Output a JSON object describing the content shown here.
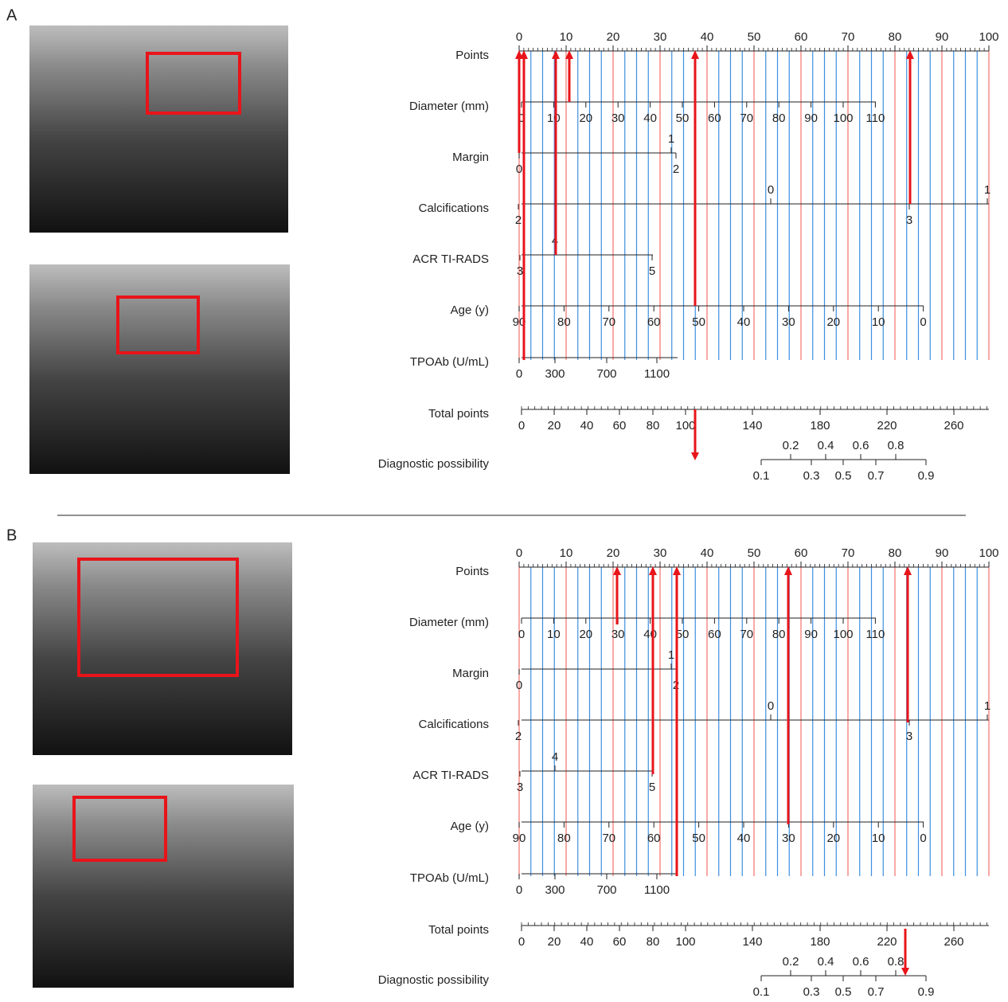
{
  "panels": [
    {
      "label": "A",
      "rows": [
        {
          "name": "Points",
          "above": [
            0,
            10,
            20,
            30,
            40,
            50,
            60,
            70,
            80,
            90,
            100
          ],
          "below": []
        },
        {
          "name": "Diameter (mm)",
          "above": [],
          "below": [
            0,
            10,
            20,
            30,
            40,
            50,
            60,
            70,
            80,
            90,
            100,
            110
          ]
        },
        {
          "name": "Margin",
          "above": [
            1
          ],
          "below": [
            0,
            2
          ]
        },
        {
          "name": "Calcifications",
          "above": [
            0,
            1
          ],
          "below": [
            2,
            3
          ]
        },
        {
          "name": "ACR TI-RADS",
          "above": [
            4
          ],
          "below": [
            3,
            5
          ]
        },
        {
          "name": "Age (y)",
          "above": [],
          "below": [
            90,
            80,
            70,
            60,
            50,
            40,
            30,
            20,
            10,
            0
          ]
        },
        {
          "name": "TPOAb (U/mL)",
          "above": [],
          "below": [
            0,
            300,
            700,
            1100
          ]
        },
        {
          "name": "Total points",
          "above": [],
          "below": [
            0,
            20,
            40,
            60,
            80,
            100,
            140,
            180,
            220,
            260
          ]
        },
        {
          "name": "Diagnostic possibility",
          "above": [
            0.2,
            0.4,
            0.6,
            0.8
          ],
          "below": [
            0.1,
            0.3,
            0.5,
            0.7,
            0.9
          ]
        }
      ]
    },
    {
      "label": "B",
      "rows": [
        {
          "name": "Points",
          "above": [
            0,
            10,
            20,
            30,
            40,
            50,
            60,
            70,
            80,
            90,
            100
          ],
          "below": []
        },
        {
          "name": "Diameter (mm)",
          "above": [],
          "below": [
            0,
            10,
            20,
            30,
            40,
            50,
            60,
            70,
            80,
            90,
            100,
            110
          ]
        },
        {
          "name": "Margin",
          "above": [
            1
          ],
          "below": [
            0,
            2
          ]
        },
        {
          "name": "Calcifications",
          "above": [
            0,
            1
          ],
          "below": [
            2,
            3
          ]
        },
        {
          "name": "ACR TI-RADS",
          "above": [
            4
          ],
          "below": [
            3,
            5
          ]
        },
        {
          "name": "Age (y)",
          "above": [],
          "below": [
            90,
            80,
            70,
            60,
            50,
            40,
            30,
            20,
            10,
            0
          ]
        },
        {
          "name": "TPOAb (U/mL)",
          "above": [],
          "below": [
            0,
            300,
            700,
            1100
          ]
        },
        {
          "name": "Total points",
          "above": [],
          "below": [
            0,
            20,
            40,
            60,
            80,
            100,
            140,
            180,
            220,
            260
          ]
        },
        {
          "name": "Diagnostic possibility",
          "above": [
            0.2,
            0.4,
            0.6,
            0.8
          ],
          "below": [
            0.1,
            0.3,
            0.5,
            0.7,
            0.9
          ]
        }
      ]
    }
  ]
}
